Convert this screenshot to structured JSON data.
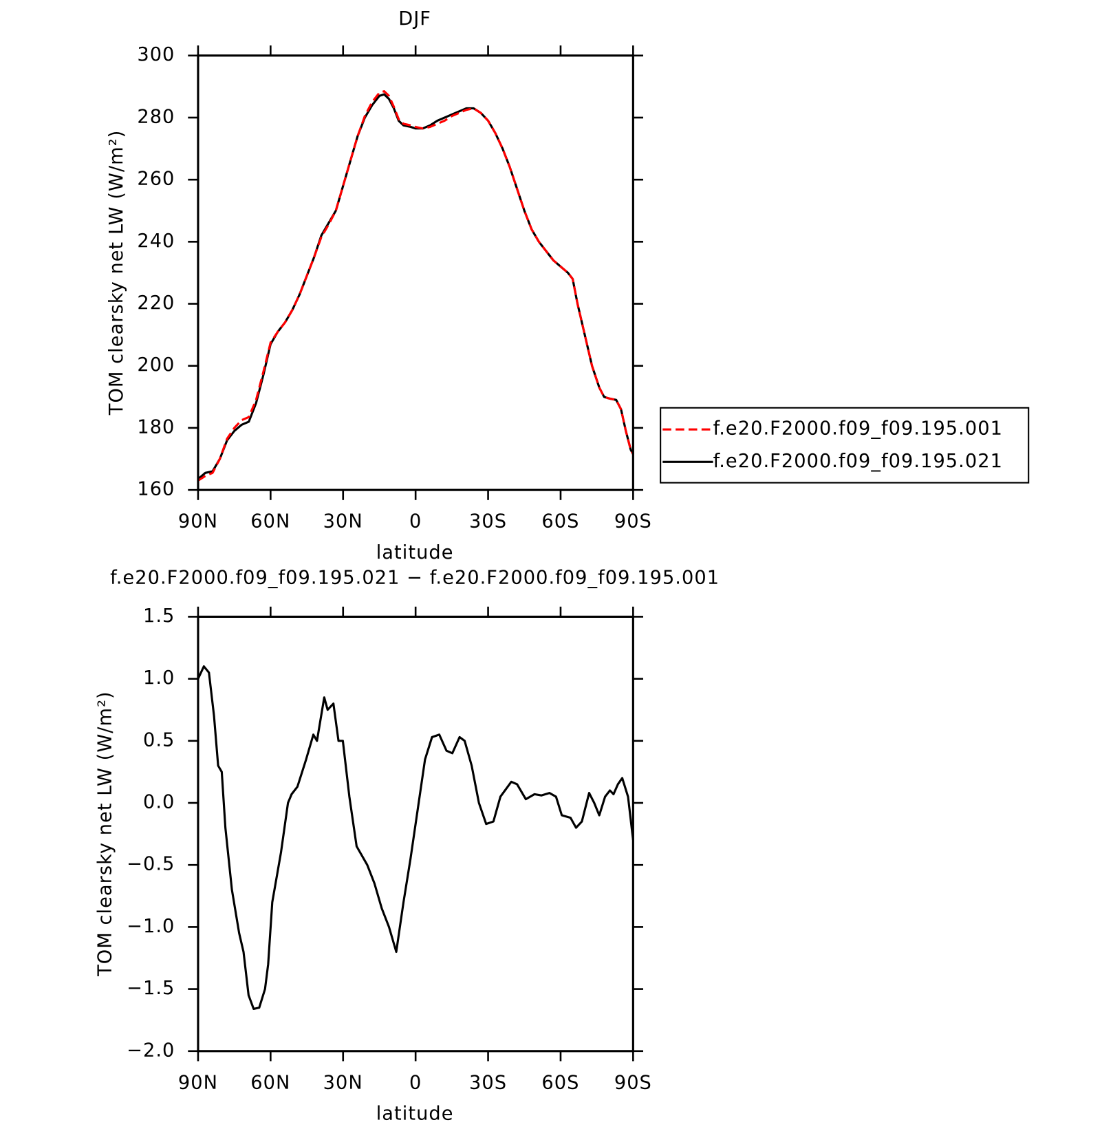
{
  "chart_data": [
    {
      "type": "line",
      "title": "DJF",
      "xlabel": "latitude",
      "ylabel": "TOM clearsky net LW (W/m²)",
      "xlim": [
        90,
        -90
      ],
      "ylim": [
        160,
        300
      ],
      "xticks": [
        {
          "value": 90,
          "label": "90N"
        },
        {
          "value": 60,
          "label": "60N"
        },
        {
          "value": 30,
          "label": "30N"
        },
        0,
        {
          "value": -30,
          "label": "30S"
        },
        {
          "value": -60,
          "label": "60S"
        },
        {
          "value": -90,
          "label": "90S"
        }
      ],
      "yticks": [
        160,
        180,
        200,
        220,
        240,
        260,
        280,
        300
      ],
      "legend": "right",
      "x": [
        90,
        87,
        84,
        81,
        78,
        75,
        72,
        69,
        66,
        63,
        60,
        57,
        54,
        51,
        48,
        45,
        42,
        39,
        36,
        33,
        30,
        27,
        24,
        21,
        18,
        15,
        13,
        11,
        9,
        7,
        5,
        2,
        0,
        -3,
        -6,
        -9,
        -12,
        -15,
        -18,
        -21,
        -24,
        -27,
        -30,
        -33,
        -36,
        -39,
        -42,
        -45,
        -48,
        -51,
        -54,
        -57,
        -60,
        -63,
        -65,
        -67,
        -70,
        -73,
        -76,
        -78,
        -80,
        -83,
        -85,
        -87,
        -89,
        -90
      ],
      "series": [
        {
          "name": "f.e20.F2000.f09_f09.195.001",
          "color": "#ff0000",
          "style": "dashed",
          "values": [
            163,
            164.5,
            165.5,
            170,
            176.5,
            180,
            182.5,
            183.5,
            189,
            198,
            207.5,
            211,
            214,
            218,
            223,
            229,
            235,
            241.5,
            245.5,
            250,
            258,
            266,
            274,
            280.5,
            285,
            288,
            288.5,
            287,
            283.5,
            279.5,
            278,
            277.5,
            277,
            276.5,
            277,
            278,
            279,
            280.5,
            281.5,
            282.5,
            283,
            281.5,
            279,
            275,
            270,
            264,
            257,
            250,
            244,
            240,
            237,
            234,
            232,
            230,
            228,
            220,
            210,
            200,
            193,
            190,
            189.5,
            189,
            186,
            179,
            173,
            171.5
          ]
        },
        {
          "name": "f.e20.F2000.f09_f09.195.021",
          "color": "#000000",
          "style": "solid",
          "values": [
            163.5,
            165.5,
            166,
            170,
            176,
            179,
            181,
            182,
            188,
            197,
            207,
            211,
            214,
            218,
            223,
            229,
            235,
            242,
            246,
            250,
            258,
            266,
            274,
            280,
            284,
            287,
            287.5,
            286,
            283,
            279,
            277.5,
            277,
            276.5,
            276.5,
            277.5,
            279,
            280,
            281,
            282,
            283,
            283,
            281.5,
            279,
            275,
            270,
            264,
            257,
            250,
            244,
            240,
            237,
            234,
            232,
            230,
            228,
            220,
            210,
            200,
            193,
            190,
            189.5,
            189,
            186,
            179,
            173,
            171.5
          ]
        }
      ]
    },
    {
      "type": "line",
      "title": "f.e20.F2000.f09_f09.195.021 − f.e20.F2000.f09_f09.195.001",
      "xlabel": "latitude",
      "ylabel": "TOM clearsky net LW (W/m²)",
      "xlim": [
        90,
        -90
      ],
      "ylim": [
        -2,
        1.5
      ],
      "xticks": [
        {
          "value": 90,
          "label": "90N"
        },
        {
          "value": 60,
          "label": "60N"
        },
        {
          "value": 30,
          "label": "30N"
        },
        0,
        {
          "value": -30,
          "label": "30S"
        },
        {
          "value": -60,
          "label": "60S"
        },
        {
          "value": -90,
          "label": "90S"
        }
      ],
      "yticks": [
        {
          "value": -2,
          "label": "−2.0"
        },
        {
          "value": -1.5,
          "label": "−1.5"
        },
        {
          "value": -1,
          "label": "−1.0"
        },
        {
          "value": -0.5,
          "label": "−0.5"
        },
        {
          "value": 0,
          "label": "0.0"
        },
        0.5,
        {
          "value": 1,
          "label": "1.0"
        },
        1.5
      ],
      "color": "#000000",
      "x": [
        90,
        87.6,
        85.5,
        83.4,
        81.7,
        80.2,
        78.7,
        76,
        73,
        71.2,
        69.1,
        67,
        64.7,
        62.3,
        61,
        59.3,
        55.7,
        52.8,
        51.3,
        48.9,
        45.3,
        42.3,
        40.8,
        37.8,
        36.4,
        34,
        31.9,
        30.1,
        27.4,
        24.4,
        20,
        17,
        14,
        11,
        8,
        5,
        2.1,
        -0.9,
        -3.9,
        -6.8,
        -9.8,
        -12.8,
        -15.2,
        -18.2,
        -20.3,
        -23.2,
        -26.2,
        -29.2,
        -32.2,
        -35.1,
        -39.6,
        -42,
        -45.6,
        -49.2,
        -52.1,
        -55.4,
        -58.1,
        -60.5,
        -64.1,
        -66.4,
        -68.8,
        -71.8,
        -73.9,
        -76,
        -78.4,
        -80.4,
        -81.9,
        -83.7,
        -85.5,
        -87.9,
        -90
      ],
      "values": [
        1.0,
        1.1,
        1.05,
        0.7,
        0.3,
        0.25,
        -0.2,
        -0.7,
        -1.05,
        -1.2,
        -1.55,
        -1.66,
        -1.65,
        -1.5,
        -1.3,
        -0.8,
        -0.4,
        0.0,
        0.07,
        0.13,
        0.35,
        0.55,
        0.5,
        0.85,
        0.75,
        0.8,
        0.5,
        0.5,
        0.05,
        -0.35,
        -0.5,
        -0.65,
        -0.85,
        -1.0,
        -1.2,
        -0.8,
        -0.45,
        -0.05,
        0.35,
        0.53,
        0.55,
        0.42,
        0.4,
        0.53,
        0.5,
        0.3,
        0.0,
        -0.17,
        -0.15,
        0.05,
        0.17,
        0.15,
        0.03,
        0.07,
        0.06,
        0.08,
        0.05,
        -0.1,
        -0.12,
        -0.2,
        -0.15,
        0.08,
        0.0,
        -0.1,
        0.05,
        0.1,
        0.07,
        0.15,
        0.2,
        0.05,
        -0.3
      ]
    }
  ]
}
